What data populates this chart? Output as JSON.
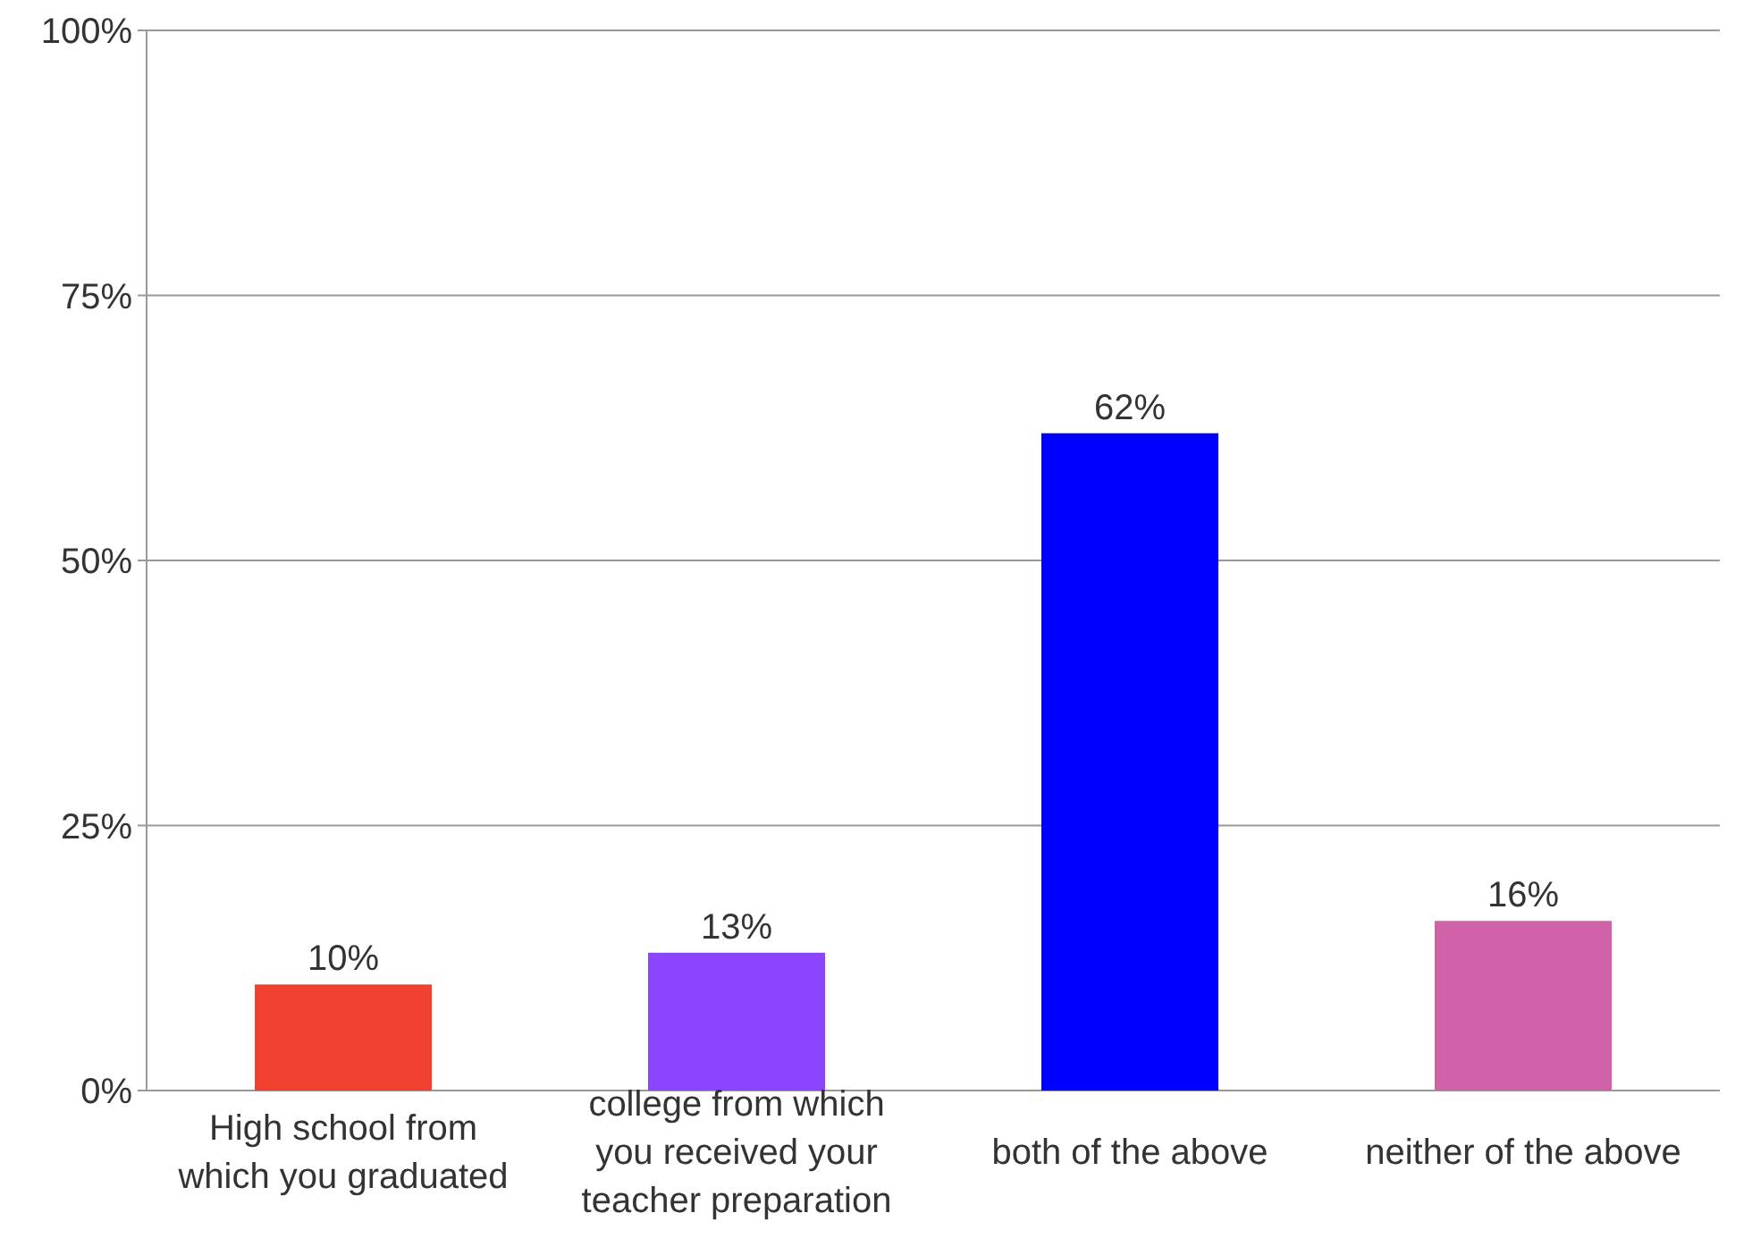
{
  "chart_data": {
    "type": "bar",
    "categories": [
      "High school from which you graduated",
      "college from which you received your teacher preparation",
      "both of the above",
      "neither of the above"
    ],
    "values": [
      10,
      13,
      62,
      16
    ],
    "colors": [
      "#f04030",
      "#8c45ff",
      "#0000ff",
      "#d063a8"
    ],
    "value_labels": [
      "10%",
      "13%",
      "62%",
      "16%"
    ],
    "ylim": [
      0,
      100
    ],
    "yticks": [
      {
        "value": 0,
        "label": "0%"
      },
      {
        "value": 25,
        "label": "25%"
      },
      {
        "value": 50,
        "label": "50%"
      },
      {
        "value": 75,
        "label": "75%"
      },
      {
        "value": 100,
        "label": "100%"
      }
    ],
    "grid": "y"
  }
}
